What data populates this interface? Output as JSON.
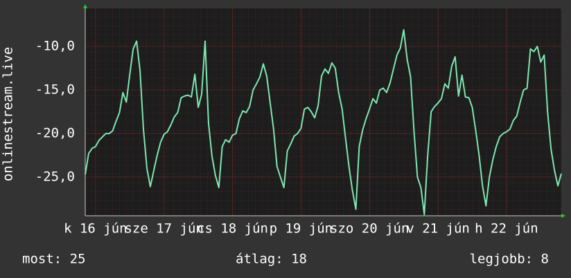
{
  "chart_data": {
    "type": "line",
    "y_label": "onlinestream.live",
    "color": "#7de8b2",
    "values": [
      -24.7,
      -22.3,
      -21.7,
      -21.5,
      -20.8,
      -20.4,
      -20.0,
      -20.0,
      -19.7,
      -18.6,
      -17.6,
      -15.3,
      -16.4,
      -13.2,
      -10.3,
      -9.4,
      -12.8,
      -19.5,
      -24.0,
      -26.1,
      -24.3,
      -22.5,
      -21.0,
      -20.1,
      -19.8,
      -19.0,
      -18.1,
      -17.6,
      -15.9,
      -15.7,
      -15.6,
      -15.8,
      -13.2,
      -17.0,
      -15.5,
      -9.4,
      -18.8,
      -22.6,
      -24.8,
      -26.2,
      -21.5,
      -20.7,
      -21.0,
      -20.2,
      -20.0,
      -18.3,
      -17.4,
      -17.6,
      -16.9,
      -15.0,
      -14.3,
      -13.5,
      -12.0,
      -13.4,
      -16.5,
      -19.5,
      -23.8,
      -25.0,
      -26.2,
      -22.0,
      -21.2,
      -20.3,
      -20.0,
      -19.4,
      -17.2,
      -17.0,
      -17.5,
      -18.2,
      -16.8,
      -13.4,
      -12.6,
      -13.1,
      -11.9,
      -12.5,
      -15.3,
      -17.2,
      -20.5,
      -23.8,
      -26.5,
      -28.7,
      -21.5,
      -19.6,
      -18.3,
      -17.2,
      -16.0,
      -16.5,
      -15.0,
      -14.8,
      -15.3,
      -14.2,
      -12.6,
      -11.0,
      -10.2,
      -8.1,
      -11.5,
      -13.5,
      -19.8,
      -25.0,
      -26.2,
      -29.3,
      -22.5,
      -17.5,
      -16.9,
      -16.5,
      -16.0,
      -14.3,
      -14.8,
      -12.3,
      -11.2,
      -15.7,
      -13.3,
      -15.8,
      -15.9,
      -17.0,
      -19.6,
      -22.5,
      -26.0,
      -28.3,
      -25.0,
      -23.0,
      -21.5,
      -20.4,
      -20.0,
      -19.8,
      -19.5,
      -18.5,
      -18.0,
      -16.4,
      -15.0,
      -14.8,
      -10.3,
      -10.6,
      -10.0,
      -11.8,
      -11.0,
      -17.5,
      -21.8,
      -24.2,
      -26.0,
      -24.6
    ],
    "xlim": [
      0,
      139
    ],
    "xticks": [
      {
        "value": 3,
        "label": "k 16 jún"
      },
      {
        "value": 23,
        "label": "sze 17 jún"
      },
      {
        "value": 43,
        "label": "cs 18 jún"
      },
      {
        "value": 63,
        "label": "p 19 jún"
      },
      {
        "value": 83,
        "label": "szo 20 jún"
      },
      {
        "value": 103,
        "label": "v 21 jún"
      },
      {
        "value": 123,
        "label": "h 22 jún"
      }
    ],
    "ylim": [
      -29.44,
      -5.63
    ],
    "yticks": [
      {
        "value": -25,
        "label": "-25,0"
      },
      {
        "value": -20,
        "label": "-20,0"
      },
      {
        "value": -15,
        "label": "-15,0"
      },
      {
        "value": -10,
        "label": "-10,0"
      }
    ],
    "grid": true,
    "footer": {
      "current": "most: 25",
      "average": "átlag: 18",
      "best": "legjobb: 8"
    }
  }
}
